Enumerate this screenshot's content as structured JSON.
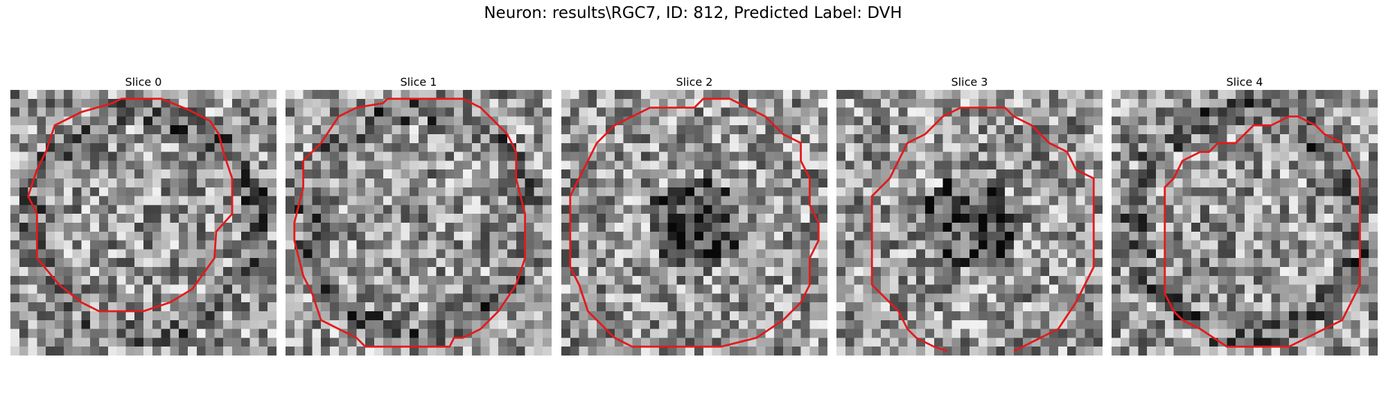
{
  "figure": {
    "title": "Neuron: results\\RGC7, ID: 812, Predicted Label: DVH"
  },
  "panels": [
    {
      "title": "Slice 0",
      "seed": 11,
      "dark_center": false,
      "ring": true
    },
    {
      "title": "Slice 1",
      "seed": 23,
      "dark_center": false,
      "ring": true
    },
    {
      "title": "Slice 2",
      "seed": 37,
      "dark_center": true,
      "ring": false
    },
    {
      "title": "Slice 3",
      "seed": 41,
      "dark_center": true,
      "ring": false
    },
    {
      "title": "Slice 4",
      "seed": 53,
      "dark_center": false,
      "ring": true
    }
  ],
  "colors": {
    "contour": "#e31a1c"
  }
}
